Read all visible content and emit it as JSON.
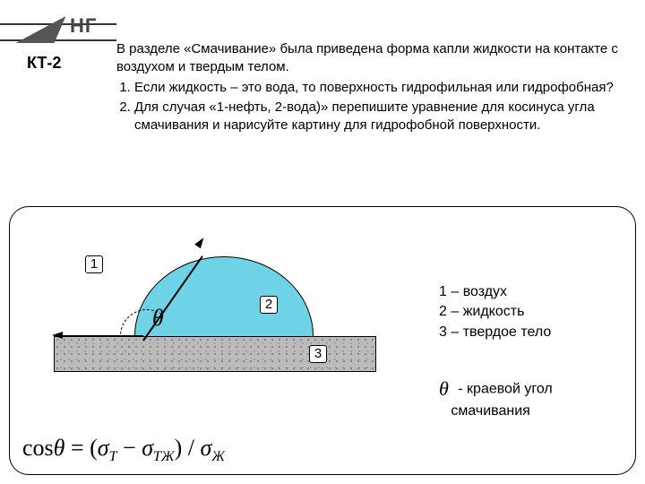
{
  "logo": {
    "text": "НГ"
  },
  "kt_label": "КТ-2",
  "intro": {
    "lead": "В разделе «Смачивание» была приведена форма капли жидкости на контакте с воздухом и твердым телом.",
    "items": [
      "Если жидкость – это вода, то поверхность гидрофильная или гидрофобная?",
      "Для случая «1-нефть, 2-вода)» перепишите уравнение для косинуса угла смачивания и нарисуйте картину для гидрофобной поверхности."
    ]
  },
  "diagram": {
    "labels": {
      "l1": "1",
      "l2": "2",
      "l3": "3"
    },
    "theta": "θ",
    "colors": {
      "droplet": "#6fd3e8",
      "solid": "#bbbbbb",
      "line": "#000000"
    }
  },
  "legend": {
    "line1": "1 – воздух",
    "line2": "2 – жидкость",
    "line3": "3 – твердое тело"
  },
  "theta_desc": {
    "symbol": "θ",
    "text1": "- краевой угол",
    "text2": "смачивания"
  },
  "formula": {
    "cos": "cos",
    "theta": "θ",
    "eq": " = (",
    "sigma": "σ",
    "subT": "Т",
    "minus": " − ",
    "subTZ": "ТЖ",
    "close": ") / ",
    "subZ": "Ж"
  }
}
